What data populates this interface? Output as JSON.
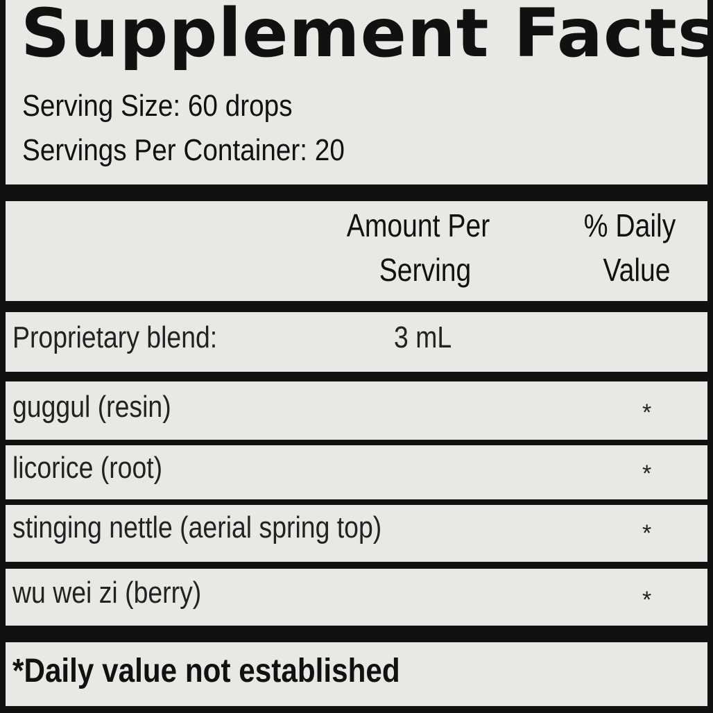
{
  "title": "Supplement Facts",
  "serving_size": "Serving Size: 60 drops",
  "servings_per_container": "Servings Per Container: 20",
  "header": {
    "amount_line1": "Amount Per",
    "amount_line2": "Serving",
    "dv_line1": "% Daily",
    "dv_line2": "Value"
  },
  "blend": {
    "name": "Proprietary blend:",
    "amount": "3 mL"
  },
  "ingredients": [
    {
      "name": "guggul (resin)",
      "dv": "*"
    },
    {
      "name": "licorice (root)",
      "dv": "*"
    },
    {
      "name": "stinging nettle (aerial spring top)",
      "dv": "*"
    },
    {
      "name": "wu wei zi (berry)",
      "dv": "*"
    }
  ],
  "footnote": "*Daily value not established"
}
